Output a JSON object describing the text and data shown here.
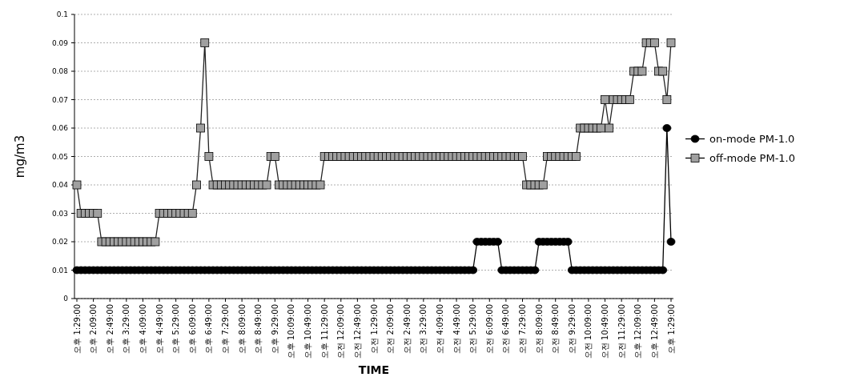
{
  "chart_data": {
    "type": "line",
    "xlabel": "TIME",
    "ylabel": "mg/m3",
    "categories": [
      "오후 1:29:00",
      null,
      null,
      null,
      "오후 2:09:00",
      null,
      null,
      null,
      "오후 2:49:00",
      null,
      null,
      null,
      "오후 3:29:00",
      null,
      null,
      null,
      "오후 4:09:00",
      null,
      null,
      null,
      "오후 4:49:00",
      null,
      null,
      null,
      "오후 5:29:00",
      null,
      null,
      null,
      "오후 6:09:00",
      null,
      null,
      null,
      "오후 6:49:00",
      null,
      null,
      null,
      "오후 7:29:00",
      null,
      null,
      null,
      "오후 8:09:00",
      null,
      null,
      null,
      "오후 8:49:00",
      null,
      null,
      null,
      "오후 9:29:00",
      null,
      null,
      null,
      "오후 10:09:00",
      null,
      null,
      null,
      "오후 10:49:00",
      null,
      null,
      null,
      "오후 11:29:00",
      null,
      null,
      null,
      "오전 12:09:00",
      null,
      null,
      null,
      "오전 12:49:00",
      null,
      null,
      null,
      "오전 1:29:00",
      null,
      null,
      null,
      "오전 2:09:00",
      null,
      null,
      null,
      "오전 2:49:00",
      null,
      null,
      null,
      "오전 3:29:00",
      null,
      null,
      null,
      "오전 4:09:00",
      null,
      null,
      null,
      "오전 4:49:00",
      null,
      null,
      null,
      "오전 5:29:00",
      null,
      null,
      null,
      "오전 6:09:00",
      null,
      null,
      null,
      "오전 6:49:00",
      null,
      null,
      null,
      "오전 7:29:00",
      null,
      null,
      null,
      "오전 8:09:00",
      null,
      null,
      null,
      "오전 8:49:00",
      null,
      null,
      null,
      "오전 9:29:00",
      null,
      null,
      null,
      "오전 10:09:00",
      null,
      null,
      null,
      "오전 10:49:00",
      null,
      null,
      null,
      "오전 11:29:00",
      null,
      null,
      null,
      "오후 12:09:00",
      null,
      null,
      null,
      "오후 12:49:00",
      null,
      null,
      null,
      "오후 1:29:00"
    ],
    "series": [
      {
        "name": "on-mode PM-1.0",
        "color": "#000000",
        "marker": "circle",
        "values": [
          0.01,
          0.01,
          0.01,
          0.01,
          0.01,
          0.01,
          0.01,
          0.01,
          0.01,
          0.01,
          0.01,
          0.01,
          0.01,
          0.01,
          0.01,
          0.01,
          0.01,
          0.01,
          0.01,
          0.01,
          0.01,
          0.01,
          0.01,
          0.01,
          0.01,
          0.01,
          0.01,
          0.01,
          0.01,
          0.01,
          0.01,
          0.01,
          0.01,
          0.01,
          0.01,
          0.01,
          0.01,
          0.01,
          0.01,
          0.01,
          0.01,
          0.01,
          0.01,
          0.01,
          0.01,
          0.01,
          0.01,
          0.01,
          0.01,
          0.01,
          0.01,
          0.01,
          0.01,
          0.01,
          0.01,
          0.01,
          0.01,
          0.01,
          0.01,
          0.01,
          0.01,
          0.01,
          0.01,
          0.01,
          0.01,
          0.01,
          0.01,
          0.01,
          0.01,
          0.01,
          0.01,
          0.01,
          0.01,
          0.01,
          0.01,
          0.01,
          0.01,
          0.01,
          0.01,
          0.01,
          0.01,
          0.01,
          0.01,
          0.01,
          0.01,
          0.01,
          0.01,
          0.01,
          0.01,
          0.01,
          0.01,
          0.01,
          0.01,
          0.01,
          0.01,
          0.01,
          0.01,
          0.02,
          0.02,
          0.02,
          0.02,
          0.02,
          0.02,
          0.01,
          0.01,
          0.01,
          0.01,
          0.01,
          0.01,
          0.01,
          0.01,
          0.01,
          0.02,
          0.02,
          0.02,
          0.02,
          0.02,
          0.02,
          0.02,
          0.02,
          0.01,
          0.01,
          0.01,
          0.01,
          0.01,
          0.01,
          0.01,
          0.01,
          0.01,
          0.01,
          0.01,
          0.01,
          0.01,
          0.01,
          0.01,
          0.01,
          0.01,
          0.01,
          0.01,
          0.01,
          0.01,
          0.01,
          0.01,
          0.06,
          0.02
        ]
      },
      {
        "name": "off-mode PM-1.0",
        "color": "#a0a0a0",
        "marker": "square",
        "values": [
          0.04,
          0.03,
          0.03,
          0.03,
          0.03,
          0.03,
          0.02,
          0.02,
          0.02,
          0.02,
          0.02,
          0.02,
          0.02,
          0.02,
          0.02,
          0.02,
          0.02,
          0.02,
          0.02,
          0.02,
          0.03,
          0.03,
          0.03,
          0.03,
          0.03,
          0.03,
          0.03,
          0.03,
          0.03,
          0.04,
          0.06,
          0.09,
          0.05,
          0.04,
          0.04,
          0.04,
          0.04,
          0.04,
          0.04,
          0.04,
          0.04,
          0.04,
          0.04,
          0.04,
          0.04,
          0.04,
          0.04,
          0.05,
          0.05,
          0.04,
          0.04,
          0.04,
          0.04,
          0.04,
          0.04,
          0.04,
          0.04,
          0.04,
          0.04,
          0.04,
          0.05,
          0.05,
          0.05,
          0.05,
          0.05,
          0.05,
          0.05,
          0.05,
          0.05,
          0.05,
          0.05,
          0.05,
          0.05,
          0.05,
          0.05,
          0.05,
          0.05,
          0.05,
          0.05,
          0.05,
          0.05,
          0.05,
          0.05,
          0.05,
          0.05,
          0.05,
          0.05,
          0.05,
          0.05,
          0.05,
          0.05,
          0.05,
          0.05,
          0.05,
          0.05,
          0.05,
          0.05,
          0.05,
          0.05,
          0.05,
          0.05,
          0.05,
          0.05,
          0.05,
          0.05,
          0.05,
          0.05,
          0.05,
          0.05,
          0.04,
          0.04,
          0.04,
          0.04,
          0.04,
          0.05,
          0.05,
          0.05,
          0.05,
          0.05,
          0.05,
          0.05,
          0.05,
          0.06,
          0.06,
          0.06,
          0.06,
          0.06,
          0.06,
          0.07,
          0.06,
          0.07,
          0.07,
          0.07,
          0.07,
          0.07,
          0.08,
          0.08,
          0.08,
          0.09,
          0.09,
          0.09,
          0.08,
          0.08,
          0.07,
          0.09
        ]
      }
    ],
    "ylim": [
      0,
      0.1
    ],
    "yticks": [
      0,
      0.01,
      0.02,
      0.03,
      0.04,
      0.05,
      0.06,
      0.07,
      0.08,
      0.09,
      0.1
    ],
    "grid": "y",
    "legend": "right"
  }
}
